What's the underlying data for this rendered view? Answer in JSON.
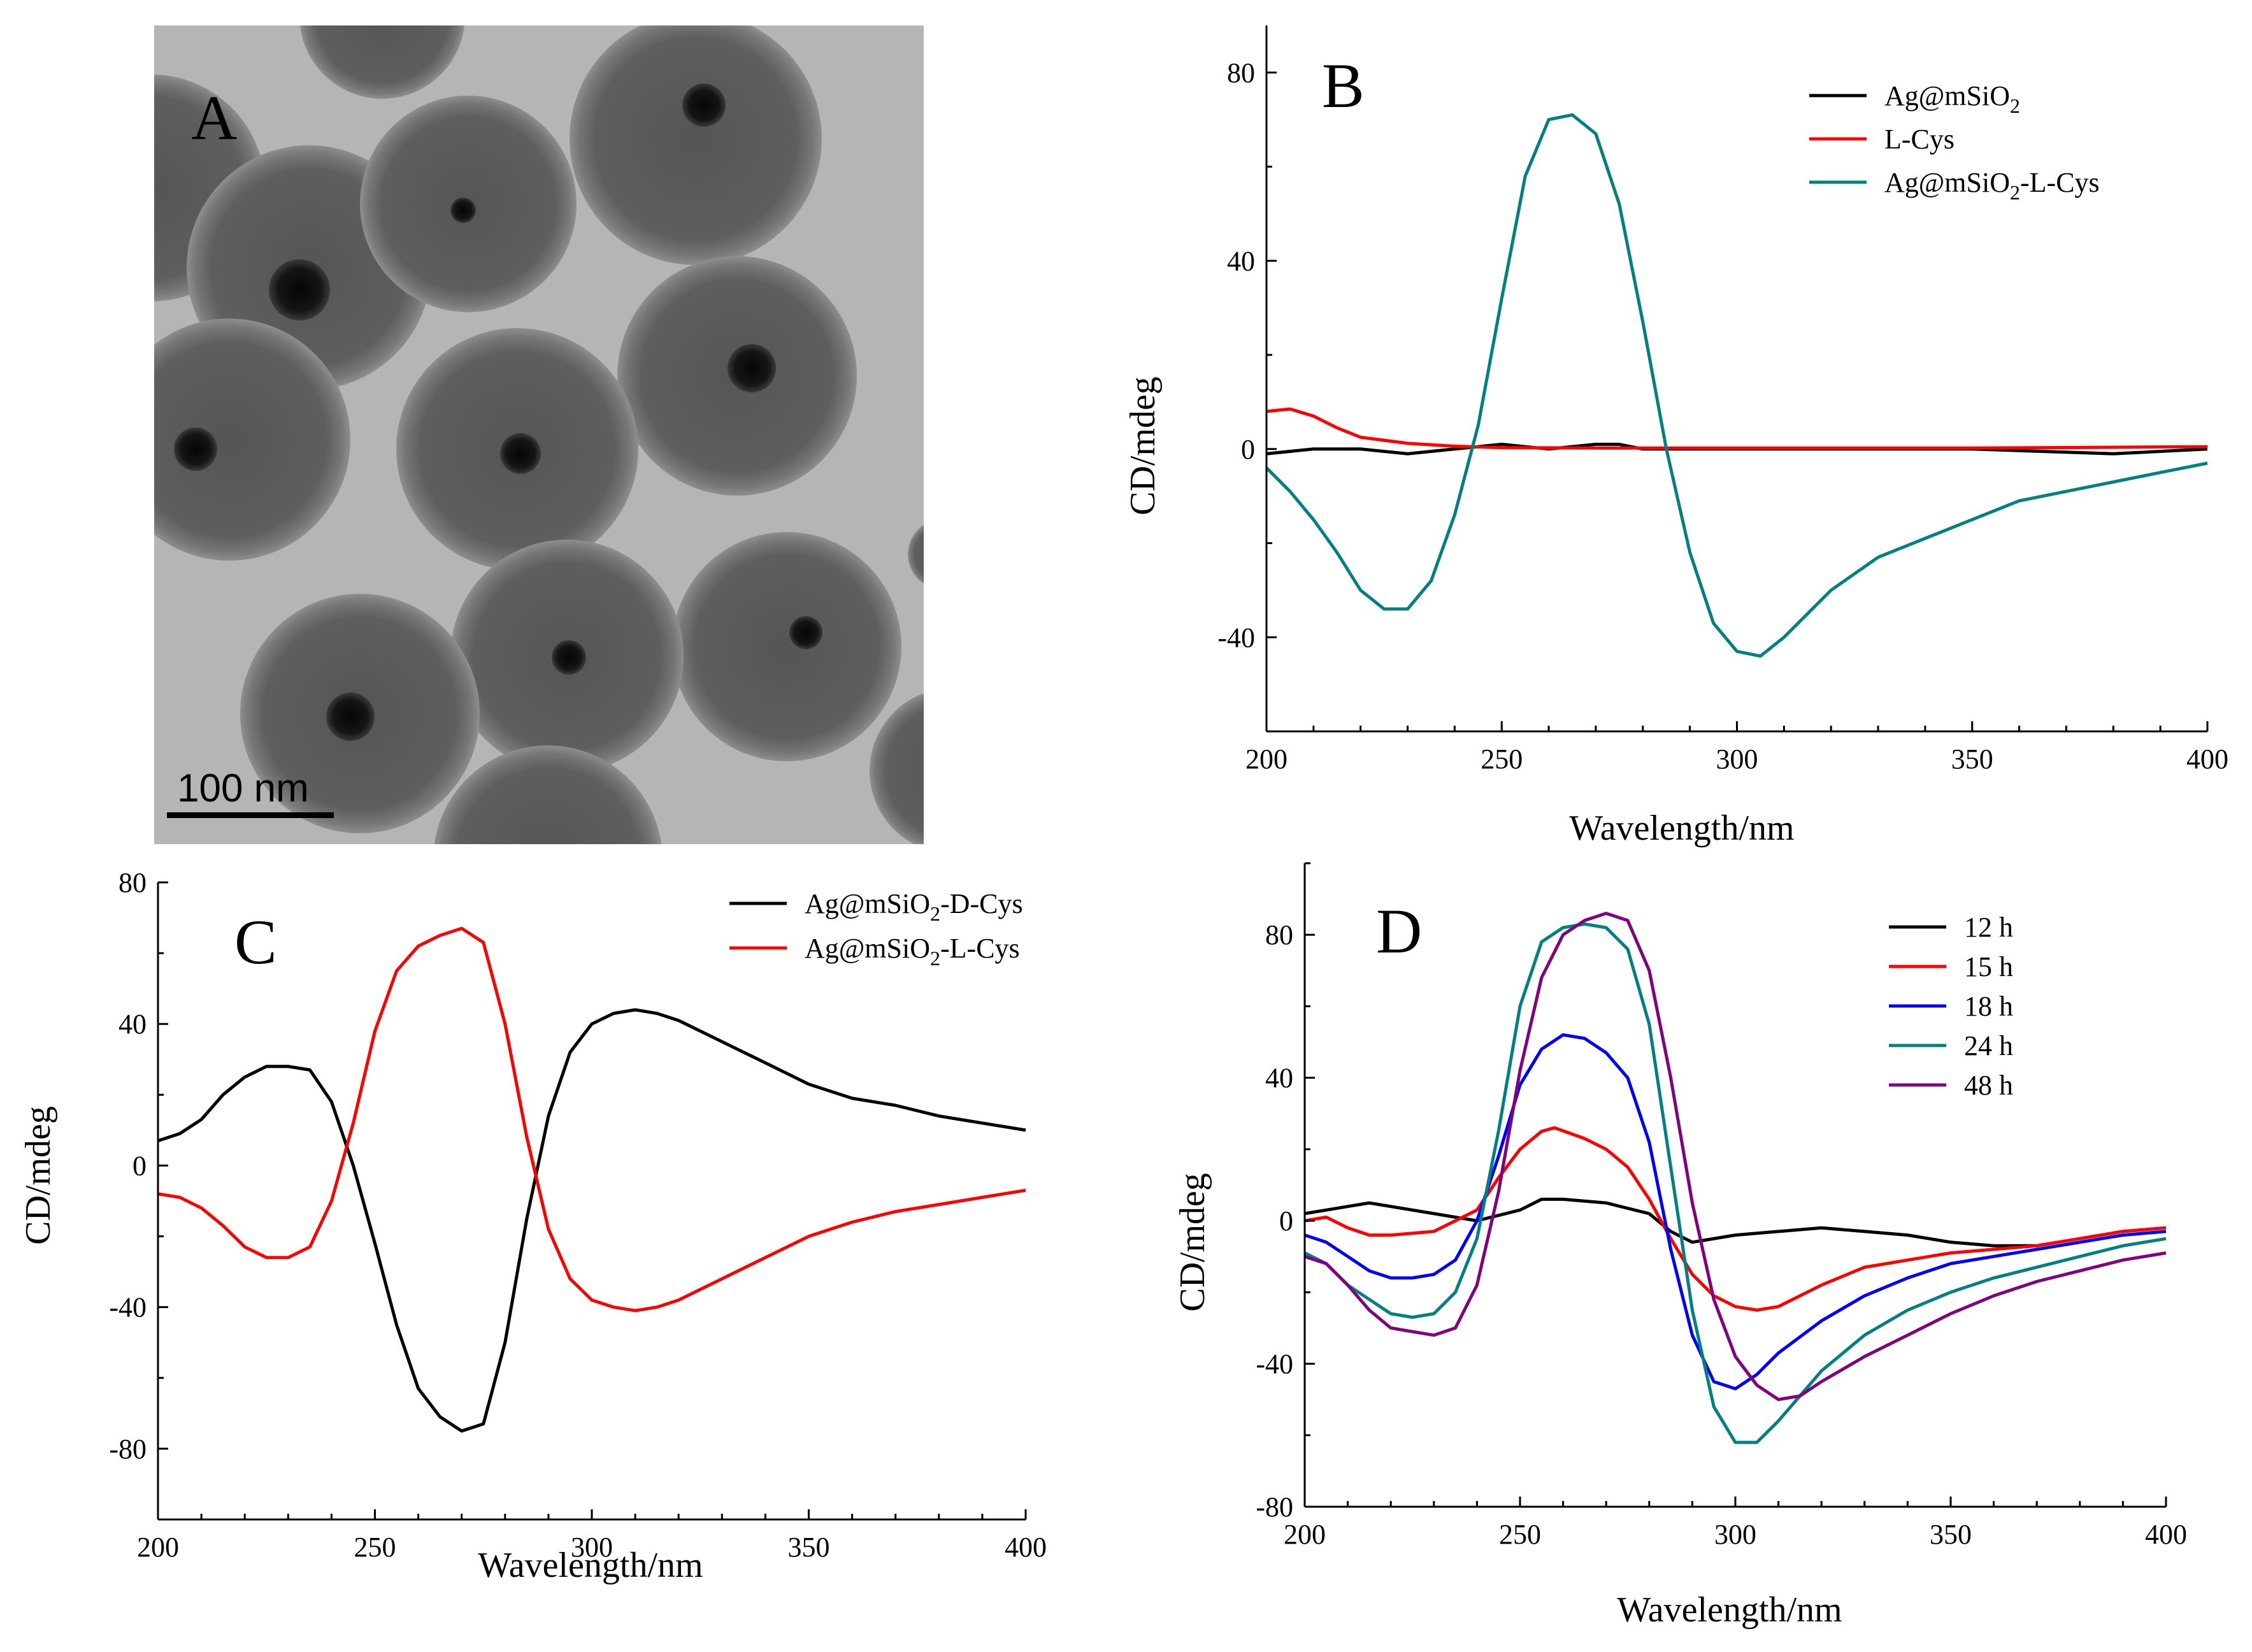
{
  "panels": {
    "A": {
      "label": "A",
      "scale_bar_label": "100 nm",
      "image_description": "TEM micrograph of Ag@mSiO2 core-shell spheres"
    }
  },
  "colors": {
    "black": "#000000",
    "red": "#ff0000",
    "blue": "#0000ff",
    "teal": "#008080",
    "purple": "#800080"
  },
  "chart_data": [
    {
      "panel": "B",
      "type": "line",
      "label": "B",
      "xlabel": "Wavelength/nm",
      "ylabel": "CD/mdeg",
      "xlim": [
        200,
        400
      ],
      "ylim": [
        -60,
        90
      ],
      "xticks": [
        200,
        250,
        300,
        350,
        400
      ],
      "yticks": [
        -40,
        0,
        40,
        80
      ],
      "legend_position": "top-right",
      "series": [
        {
          "name": "Ag@mSiO2",
          "color": "#000000",
          "x": [
            200,
            210,
            220,
            230,
            240,
            250,
            260,
            270,
            275,
            280,
            290,
            300,
            320,
            350,
            380,
            400
          ],
          "y": [
            -1,
            0,
            0,
            -1,
            0,
            1,
            0,
            1,
            1,
            0,
            0,
            0,
            0,
            0,
            -1,
            0
          ]
        },
        {
          "name": "L-Cys",
          "color": "#ff0000",
          "x": [
            200,
            205,
            210,
            215,
            220,
            230,
            240,
            250,
            270,
            300,
            350,
            400
          ],
          "y": [
            8,
            8.5,
            7,
            4.5,
            2.5,
            1.2,
            0.6,
            0.3,
            0.2,
            0.2,
            0.2,
            0.5
          ]
        },
        {
          "name": "Ag@mSiO2-L-Cys",
          "color": "#008080",
          "x": [
            200,
            205,
            210,
            215,
            220,
            225,
            230,
            235,
            240,
            245,
            250,
            255,
            260,
            265,
            270,
            275,
            280,
            285,
            290,
            295,
            300,
            305,
            310,
            315,
            320,
            330,
            340,
            350,
            360,
            370,
            380,
            390,
            400
          ],
          "y": [
            -4,
            -9,
            -15,
            -22,
            -30,
            -34,
            -34,
            -28,
            -14,
            5,
            32,
            58,
            70,
            71,
            67,
            52,
            27,
            0,
            -22,
            -37,
            -43,
            -44,
            -40,
            -35,
            -30,
            -23,
            -19,
            -15,
            -11,
            -9,
            -7,
            -5,
            -3
          ]
        }
      ]
    },
    {
      "panel": "C",
      "type": "line",
      "label": "C",
      "xlabel": "Wavelength/nm",
      "ylabel": "CD/mdeg",
      "xlim": [
        200,
        400
      ],
      "ylim": [
        -100,
        80
      ],
      "xticks": [
        200,
        250,
        300,
        350,
        400
      ],
      "yticks": [
        -80,
        -40,
        0,
        40,
        80
      ],
      "legend_position": "top-right",
      "series": [
        {
          "name": "Ag@mSiO2-D-Cys",
          "color": "#000000",
          "x": [
            200,
            205,
            210,
            215,
            220,
            225,
            230,
            235,
            240,
            245,
            250,
            255,
            260,
            265,
            270,
            275,
            280,
            285,
            290,
            295,
            300,
            305,
            310,
            315,
            320,
            330,
            340,
            350,
            360,
            370,
            380,
            390,
            400
          ],
          "y": [
            7,
            9,
            13,
            20,
            25,
            28,
            28,
            27,
            18,
            0,
            -22,
            -45,
            -63,
            -71,
            -75,
            -73,
            -50,
            -15,
            14,
            32,
            40,
            43,
            44,
            43,
            41,
            35,
            29,
            23,
            19,
            17,
            14,
            12,
            10
          ]
        },
        {
          "name": "Ag@mSiO2-L-Cys",
          "color": "#ff0000",
          "x": [
            200,
            205,
            210,
            215,
            220,
            225,
            230,
            235,
            240,
            245,
            250,
            255,
            260,
            265,
            270,
            275,
            280,
            285,
            290,
            295,
            300,
            305,
            310,
            315,
            320,
            330,
            340,
            350,
            360,
            370,
            380,
            390,
            400
          ],
          "y": [
            -8,
            -9,
            -12,
            -17,
            -23,
            -26,
            -26,
            -23,
            -10,
            12,
            38,
            55,
            62,
            65,
            67,
            63,
            40,
            8,
            -18,
            -32,
            -38,
            -40,
            -41,
            -40,
            -38,
            -32,
            -26,
            -20,
            -16,
            -13,
            -11,
            -9,
            -7
          ]
        }
      ]
    },
    {
      "panel": "D",
      "type": "line",
      "label": "D",
      "xlabel": "Wavelength/nm",
      "ylabel": "CD/mdeg",
      "xlim": [
        200,
        400
      ],
      "ylim": [
        -80,
        100
      ],
      "xticks": [
        200,
        250,
        300,
        350,
        400
      ],
      "yticks": [
        -80,
        -40,
        0,
        40,
        80
      ],
      "legend_position": "top-right",
      "series": [
        {
          "name": "12 h",
          "color": "#000000",
          "x": [
            200,
            205,
            210,
            215,
            220,
            230,
            240,
            250,
            255,
            260,
            270,
            280,
            285,
            290,
            300,
            310,
            320,
            330,
            340,
            350,
            360,
            370,
            380,
            390,
            400
          ],
          "y": [
            2,
            3,
            4,
            5,
            4,
            2,
            0,
            3,
            6,
            6,
            5,
            2,
            -3,
            -6,
            -4,
            -3,
            -2,
            -3,
            -4,
            -6,
            -7,
            -7,
            -5,
            -3,
            -2
          ]
        },
        {
          "name": "15 h",
          "color": "#ff0000",
          "x": [
            200,
            205,
            210,
            215,
            220,
            230,
            240,
            245,
            250,
            255,
            258,
            265,
            270,
            275,
            280,
            285,
            290,
            295,
            300,
            305,
            310,
            320,
            330,
            340,
            350,
            360,
            370,
            380,
            390,
            400
          ],
          "y": [
            0,
            1,
            -2,
            -4,
            -4,
            -3,
            3,
            12,
            20,
            25,
            26,
            23,
            20,
            15,
            6,
            -5,
            -15,
            -21,
            -24,
            -25,
            -24,
            -18,
            -13,
            -11,
            -9,
            -8,
            -7,
            -5,
            -3,
            -2
          ]
        },
        {
          "name": "18 h",
          "color": "#0000ff",
          "x": [
            200,
            205,
            210,
            215,
            220,
            225,
            230,
            235,
            240,
            245,
            250,
            255,
            260,
            265,
            270,
            275,
            280,
            285,
            290,
            295,
            300,
            305,
            310,
            320,
            330,
            340,
            350,
            360,
            370,
            380,
            390,
            400
          ],
          "y": [
            -4,
            -6,
            -10,
            -14,
            -16,
            -16,
            -15,
            -11,
            0,
            18,
            38,
            48,
            52,
            51,
            47,
            40,
            22,
            -8,
            -32,
            -45,
            -47,
            -43,
            -37,
            -28,
            -21,
            -16,
            -12,
            -10,
            -8,
            -6,
            -4,
            -3
          ]
        },
        {
          "name": "24 h",
          "color": "#008080",
          "x": [
            200,
            205,
            210,
            215,
            220,
            225,
            230,
            235,
            240,
            245,
            250,
            255,
            260,
            265,
            270,
            275,
            280,
            285,
            290,
            295,
            300,
            305,
            310,
            320,
            330,
            340,
            350,
            360,
            370,
            380,
            390,
            400
          ],
          "y": [
            -9,
            -12,
            -18,
            -22,
            -26,
            -27,
            -26,
            -20,
            -5,
            25,
            60,
            78,
            82,
            83,
            82,
            76,
            55,
            15,
            -25,
            -52,
            -62,
            -62,
            -56,
            -42,
            -32,
            -25,
            -20,
            -16,
            -13,
            -10,
            -7,
            -5
          ]
        },
        {
          "name": "48 h",
          "color": "#800080",
          "x": [
            200,
            205,
            210,
            215,
            220,
            225,
            230,
            235,
            240,
            245,
            250,
            255,
            260,
            265,
            270,
            275,
            280,
            285,
            290,
            295,
            300,
            305,
            310,
            315,
            320,
            330,
            340,
            350,
            360,
            370,
            380,
            390,
            400
          ],
          "y": [
            -10,
            -12,
            -18,
            -25,
            -30,
            -31,
            -32,
            -30,
            -18,
            8,
            42,
            68,
            80,
            84,
            86,
            84,
            70,
            40,
            5,
            -22,
            -38,
            -46,
            -50,
            -49,
            -45,
            -38,
            -32,
            -26,
            -21,
            -17,
            -14,
            -11,
            -9
          ]
        }
      ]
    }
  ]
}
